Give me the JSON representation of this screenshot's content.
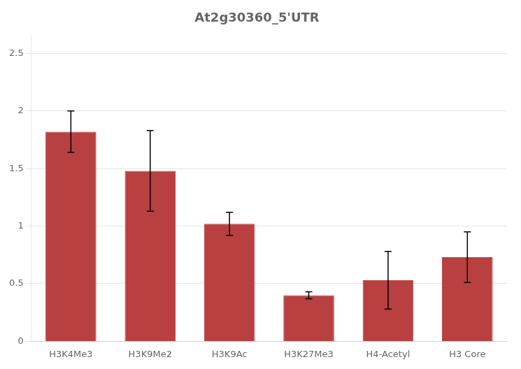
{
  "chart_data": {
    "type": "bar",
    "title": "At2g30360_5'UTR",
    "categories": [
      "H3K4Me3",
      "H3K9Me2",
      "H3K9Ac",
      "H3K27Me3",
      "H4-Acetyl",
      "H3 Core"
    ],
    "values": [
      1.82,
      1.48,
      1.02,
      0.4,
      0.53,
      0.73
    ],
    "errors": [
      0.18,
      0.35,
      0.1,
      0.03,
      0.25,
      0.22
    ],
    "color": "#b94040",
    "ylim": [
      0,
      2.65
    ],
    "yticks": [
      0,
      0.5,
      1,
      1.5,
      2,
      2.5
    ],
    "grid": true
  }
}
